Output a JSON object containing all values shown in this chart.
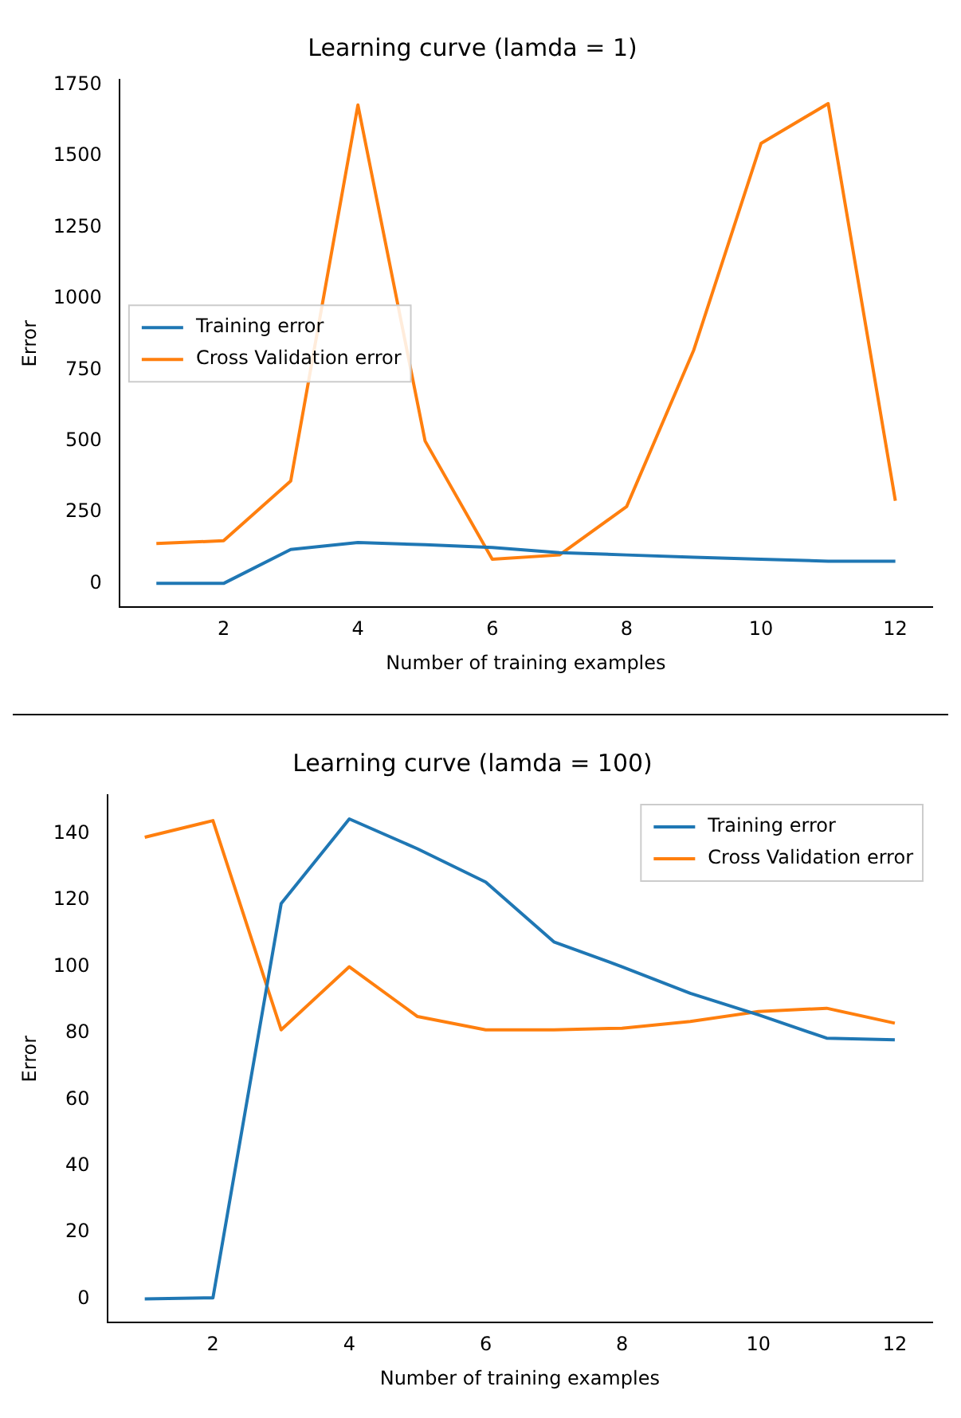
{
  "chart_data": [
    {
      "type": "line",
      "title": "Learning curve (lamda = 1)",
      "xlabel": "Number of training examples",
      "ylabel": "Error",
      "x": [
        1,
        2,
        3,
        4,
        5,
        6,
        7,
        8,
        9,
        10,
        11,
        12
      ],
      "series": [
        {
          "name": "Training error",
          "color": "#1f77b4",
          "values": [
            0,
            0,
            119,
            144,
            136,
            126,
            108,
            100,
            92,
            85,
            78,
            78
          ]
        },
        {
          "name": "Cross Validation error",
          "color": "#ff7f0e",
          "values": [
            140,
            150,
            360,
            1680,
            500,
            85,
            100,
            270,
            820,
            1545,
            1685,
            290
          ]
        }
      ],
      "xlim": [
        0.45,
        12.55
      ],
      "xticks": [
        2,
        4,
        6,
        8,
        10,
        12
      ],
      "ylim": [
        -84,
        1769
      ],
      "yticks": [
        0,
        250,
        500,
        750,
        1000,
        1250,
        1500,
        1750
      ],
      "legend": "center left",
      "grid": false
    },
    {
      "type": "line",
      "title": "Learning curve (lamda = 100)",
      "xlabel": "Number of training examples",
      "ylabel": "Error",
      "x": [
        1,
        2,
        3,
        4,
        5,
        6,
        7,
        8,
        9,
        10,
        11,
        12
      ],
      "series": [
        {
          "name": "Training error",
          "color": "#1f77b4",
          "values": [
            0,
            0.3,
            119,
            144.5,
            135.5,
            125.5,
            107.5,
            100,
            92,
            85.5,
            78.5,
            78
          ]
        },
        {
          "name": "Cross Validation error",
          "color": "#ff7f0e",
          "values": [
            139,
            144,
            81,
            100,
            85,
            81,
            81,
            81.5,
            83.5,
            86.5,
            87.5,
            83
          ]
        }
      ],
      "xlim": [
        0.45,
        12.55
      ],
      "xticks": [
        2,
        4,
        6,
        8,
        10,
        12
      ],
      "ylim": [
        -7.2,
        151.7
      ],
      "yticks": [
        0,
        20,
        40,
        60,
        80,
        100,
        120,
        140
      ],
      "legend": "top right",
      "grid": false
    }
  ]
}
